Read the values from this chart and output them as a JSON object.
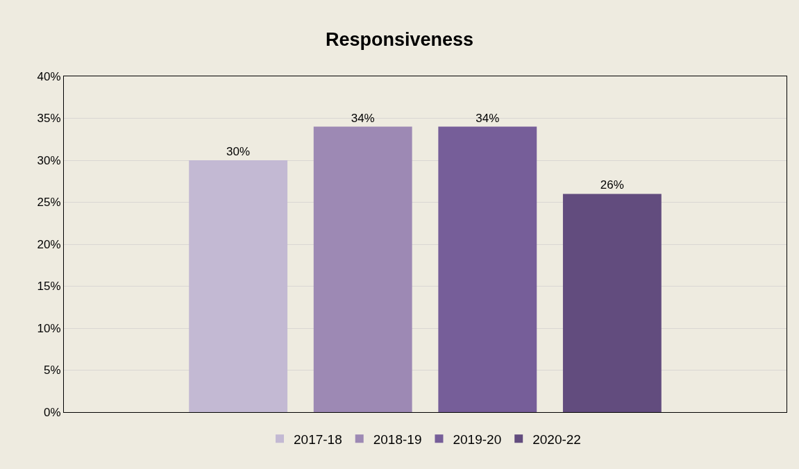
{
  "chart_data": {
    "type": "bar",
    "title": "Responsiveness",
    "categories": [
      null
    ],
    "series": [
      {
        "name": "2017-18",
        "color": "#c3b9d3",
        "values": [
          30
        ],
        "value_labels": [
          "30%"
        ]
      },
      {
        "name": "2018-19",
        "color": "#9d89b4",
        "values": [
          34
        ],
        "value_labels": [
          "34%"
        ]
      },
      {
        "name": "2019-20",
        "color": "#765e99",
        "values": [
          34
        ],
        "value_labels": [
          "34%"
        ]
      },
      {
        "name": "2020-22",
        "color": "#624c7e",
        "values": [
          26
        ],
        "value_labels": [
          "26%"
        ]
      }
    ],
    "ylim": [
      0,
      40
    ],
    "yticks": [
      {
        "value": 0,
        "label": "0%"
      },
      {
        "value": 5,
        "label": "5%"
      },
      {
        "value": 10,
        "label": "10%"
      },
      {
        "value": 15,
        "label": "15%"
      },
      {
        "value": 20,
        "label": "20%"
      },
      {
        "value": 25,
        "label": "25%"
      },
      {
        "value": 30,
        "label": "30%"
      },
      {
        "value": 35,
        "label": "35%"
      },
      {
        "value": 40,
        "label": "40%"
      }
    ],
    "grid": "y",
    "legend": "bottom"
  }
}
